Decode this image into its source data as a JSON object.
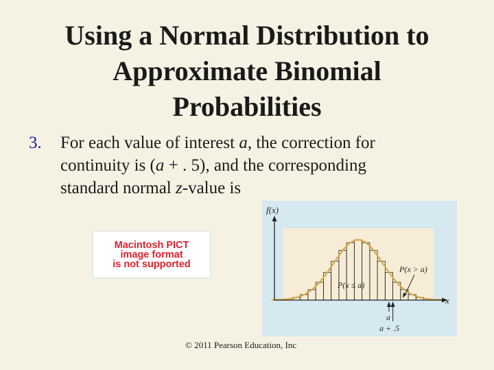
{
  "title": {
    "line1": "Using a Normal Distribution to",
    "line2": "Approximate Binomial",
    "line3": "Probabilities"
  },
  "point": {
    "number": "3.",
    "line1_a": "For each value of interest ",
    "line1_var": "a",
    "line1_b": ", the correction for",
    "line2_a": "continuity is (",
    "line2_var": "a",
    "line2_b": " + . 5), and the corresponding",
    "line3_a": "standard normal ",
    "line3_var": "z",
    "line3_b": "-value is"
  },
  "pict_placeholder": {
    "line1": "Macintosh PICT",
    "line2": "image format",
    "line3": "is not supported"
  },
  "figure": {
    "y_axis_label": "f(x)",
    "x_axis_label": "x",
    "label_greater": "P(x > a)",
    "label_less_equal": "P(x ≤ a)",
    "marker_a": "a",
    "marker_a_plus": "a + .5",
    "colors": {
      "background": "#d6e8f0",
      "highlight": "#f7ecd6",
      "curve": "#d9a84a",
      "bars": "#222222"
    },
    "bar_count": 21,
    "a_bar_index": 14
  },
  "copyright": "© 2011 Pearson Education, Inc"
}
